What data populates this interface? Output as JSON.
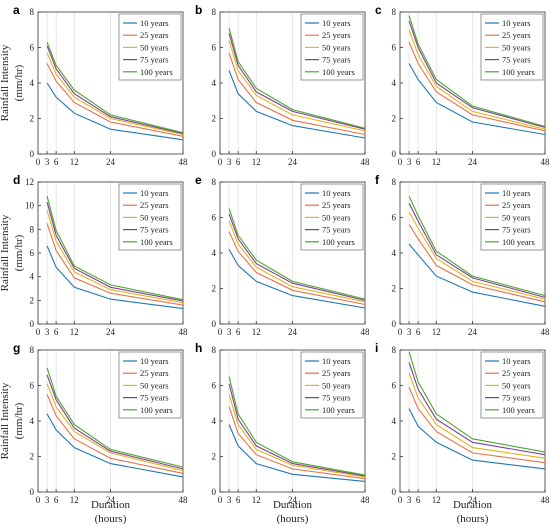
{
  "figure": {
    "ylabel_line1": "Rainfall Intensity",
    "ylabel_line2": "(mm/hr)",
    "xlabel_line1": "Duration",
    "xlabel_line2": "(hours)"
  },
  "legend_labels": [
    "10 years",
    "25 years",
    "50 years",
    "75 years",
    "100 years"
  ],
  "series_colors": [
    "#1f77b4",
    "#e8734a",
    "#e5b41b",
    "#7e3f98",
    "#4ca62d"
  ],
  "chart_data": [
    {
      "type": "line",
      "panel": "a",
      "x": [
        3,
        6,
        12,
        24,
        48
      ],
      "xticks": [
        0,
        3,
        6,
        12,
        24,
        48
      ],
      "xlim": [
        0,
        48
      ],
      "ylim": [
        0,
        8
      ],
      "yticks": [
        0,
        2,
        4,
        6,
        8
      ],
      "grid": "vertical",
      "legend": "top-right",
      "series": [
        {
          "name": "10 years",
          "values": [
            4.0,
            3.2,
            2.3,
            1.4,
            0.8
          ]
        },
        {
          "name": "25 years",
          "values": [
            5.1,
            4.1,
            2.9,
            1.8,
            1.0
          ]
        },
        {
          "name": "50 years",
          "values": [
            5.7,
            4.5,
            3.2,
            2.0,
            1.1
          ]
        },
        {
          "name": "75 years",
          "values": [
            6.1,
            4.8,
            3.4,
            2.1,
            1.15
          ]
        },
        {
          "name": "100 years",
          "values": [
            6.3,
            5.0,
            3.6,
            2.2,
            1.2
          ]
        }
      ]
    },
    {
      "type": "line",
      "panel": "b",
      "x": [
        3,
        6,
        12,
        24,
        48
      ],
      "xticks": [
        0,
        3,
        6,
        12,
        24,
        48
      ],
      "xlim": [
        0,
        48
      ],
      "ylim": [
        0,
        8
      ],
      "yticks": [
        0,
        2,
        4,
        6,
        8
      ],
      "grid": "vertical",
      "legend": "top-right",
      "series": [
        {
          "name": "10 years",
          "values": [
            4.7,
            3.4,
            2.4,
            1.6,
            0.9
          ]
        },
        {
          "name": "25 years",
          "values": [
            5.7,
            4.2,
            2.9,
            1.9,
            1.1
          ]
        },
        {
          "name": "50 years",
          "values": [
            6.4,
            4.7,
            3.3,
            2.2,
            1.3
          ]
        },
        {
          "name": "75 years",
          "values": [
            6.8,
            5.0,
            3.5,
            2.4,
            1.4
          ]
        },
        {
          "name": "100 years",
          "values": [
            7.1,
            5.2,
            3.7,
            2.5,
            1.45
          ]
        }
      ]
    },
    {
      "type": "line",
      "panel": "c",
      "x": [
        3,
        6,
        12,
        24,
        48
      ],
      "xticks": [
        0,
        3,
        6,
        12,
        24,
        48
      ],
      "xlim": [
        0,
        48
      ],
      "ylim": [
        0,
        8
      ],
      "yticks": [
        0,
        2,
        4,
        6,
        8
      ],
      "grid": "vertical",
      "legend": "top-right",
      "series": [
        {
          "name": "10 years",
          "values": [
            5.1,
            4.2,
            2.9,
            1.8,
            1.1
          ]
        },
        {
          "name": "25 years",
          "values": [
            6.3,
            5.1,
            3.5,
            2.2,
            1.3
          ]
        },
        {
          "name": "50 years",
          "values": [
            7.0,
            5.6,
            3.8,
            2.4,
            1.4
          ]
        },
        {
          "name": "75 years",
          "values": [
            7.5,
            6.0,
            4.0,
            2.6,
            1.5
          ]
        },
        {
          "name": "100 years",
          "values": [
            7.8,
            6.2,
            4.2,
            2.7,
            1.55
          ]
        }
      ]
    },
    {
      "type": "line",
      "panel": "d",
      "x": [
        3,
        6,
        12,
        24,
        48
      ],
      "xticks": [
        0,
        3,
        6,
        12,
        24,
        48
      ],
      "xlim": [
        0,
        48
      ],
      "ylim": [
        0,
        12
      ],
      "yticks": [
        0,
        2,
        4,
        6,
        8,
        10,
        12
      ],
      "grid": "vertical",
      "legend": "top-right",
      "series": [
        {
          "name": "10 years",
          "values": [
            6.6,
            4.8,
            3.1,
            2.1,
            1.3
          ]
        },
        {
          "name": "25 years",
          "values": [
            8.5,
            6.2,
            3.9,
            2.6,
            1.6
          ]
        },
        {
          "name": "50 years",
          "values": [
            9.6,
            7.0,
            4.4,
            2.9,
            1.8
          ]
        },
        {
          "name": "75 years",
          "values": [
            10.3,
            7.5,
            4.7,
            3.1,
            1.95
          ]
        },
        {
          "name": "100 years",
          "values": [
            10.8,
            7.9,
            4.9,
            3.3,
            2.05
          ]
        }
      ]
    },
    {
      "type": "line",
      "panel": "e",
      "x": [
        3,
        6,
        12,
        24,
        48
      ],
      "xticks": [
        0,
        3,
        6,
        12,
        24,
        48
      ],
      "xlim": [
        0,
        48
      ],
      "ylim": [
        0,
        8
      ],
      "yticks": [
        0,
        2,
        4,
        6,
        8
      ],
      "grid": "vertical",
      "legend": "top-right",
      "series": [
        {
          "name": "10 years",
          "values": [
            4.2,
            3.3,
            2.4,
            1.6,
            0.9
          ]
        },
        {
          "name": "25 years",
          "values": [
            5.2,
            4.1,
            2.9,
            1.9,
            1.1
          ]
        },
        {
          "name": "50 years",
          "values": [
            5.8,
            4.5,
            3.2,
            2.1,
            1.25
          ]
        },
        {
          "name": "75 years",
          "values": [
            6.2,
            4.8,
            3.4,
            2.3,
            1.33
          ]
        },
        {
          "name": "100 years",
          "values": [
            6.5,
            5.0,
            3.6,
            2.4,
            1.4
          ]
        }
      ]
    },
    {
      "type": "line",
      "panel": "f",
      "x": [
        3,
        6,
        12,
        24,
        48
      ],
      "xticks": [
        0,
        3,
        6,
        12,
        24,
        48
      ],
      "xlim": [
        0,
        48
      ],
      "ylim": [
        0,
        8
      ],
      "yticks": [
        0,
        2,
        4,
        6,
        8
      ],
      "grid": "vertical",
      "legend": "top-right",
      "series": [
        {
          "name": "10 years",
          "values": [
            4.5,
            3.9,
            2.7,
            1.8,
            1.0
          ]
        },
        {
          "name": "25 years",
          "values": [
            5.6,
            4.8,
            3.3,
            2.2,
            1.25
          ]
        },
        {
          "name": "50 years",
          "values": [
            6.3,
            5.4,
            3.7,
            2.4,
            1.4
          ]
        },
        {
          "name": "75 years",
          "values": [
            6.8,
            5.8,
            3.9,
            2.6,
            1.5
          ]
        },
        {
          "name": "100 years",
          "values": [
            7.2,
            6.1,
            4.1,
            2.7,
            1.6
          ]
        }
      ]
    },
    {
      "type": "line",
      "panel": "g",
      "x": [
        3,
        6,
        12,
        24,
        48
      ],
      "xticks": [
        0,
        3,
        6,
        12,
        24,
        48
      ],
      "xlim": [
        0,
        48
      ],
      "ylim": [
        0,
        8
      ],
      "yticks": [
        0,
        2,
        4,
        6,
        8
      ],
      "grid": "vertical",
      "legend": "top-right",
      "series": [
        {
          "name": "10 years",
          "values": [
            4.4,
            3.5,
            2.5,
            1.6,
            0.85
          ]
        },
        {
          "name": "25 years",
          "values": [
            5.5,
            4.3,
            3.0,
            1.9,
            1.05
          ]
        },
        {
          "name": "50 years",
          "values": [
            6.1,
            4.8,
            3.4,
            2.2,
            1.2
          ]
        },
        {
          "name": "75 years",
          "values": [
            6.6,
            5.2,
            3.6,
            2.3,
            1.3
          ]
        },
        {
          "name": "100 years",
          "values": [
            7.0,
            5.4,
            3.8,
            2.4,
            1.4
          ]
        }
      ]
    },
    {
      "type": "line",
      "panel": "h",
      "x": [
        3,
        6,
        12,
        24,
        48
      ],
      "xticks": [
        0,
        3,
        6,
        12,
        24,
        48
      ],
      "xlim": [
        0,
        48
      ],
      "ylim": [
        0,
        8
      ],
      "yticks": [
        0,
        2,
        4,
        6,
        8
      ],
      "grid": "vertical",
      "legend": "top-right",
      "series": [
        {
          "name": "10 years",
          "values": [
            3.8,
            2.6,
            1.6,
            1.0,
            0.6
          ]
        },
        {
          "name": "25 years",
          "values": [
            4.8,
            3.3,
            2.1,
            1.3,
            0.75
          ]
        },
        {
          "name": "50 years",
          "values": [
            5.5,
            3.8,
            2.4,
            1.5,
            0.85
          ]
        },
        {
          "name": "75 years",
          "values": [
            6.1,
            4.1,
            2.6,
            1.6,
            0.9
          ]
        },
        {
          "name": "100 years",
          "values": [
            6.5,
            4.4,
            2.8,
            1.7,
            0.95
          ]
        }
      ]
    },
    {
      "type": "line",
      "panel": "i",
      "x": [
        3,
        6,
        12,
        24,
        48
      ],
      "xticks": [
        0,
        3,
        6,
        12,
        24,
        48
      ],
      "xlim": [
        0,
        48
      ],
      "ylim": [
        0,
        8
      ],
      "yticks": [
        0,
        2,
        4,
        6,
        8
      ],
      "grid": "vertical",
      "legend": "top-right",
      "series": [
        {
          "name": "10 years",
          "values": [
            4.7,
            3.7,
            2.8,
            1.8,
            1.3
          ]
        },
        {
          "name": "25 years",
          "values": [
            5.9,
            4.7,
            3.4,
            2.2,
            1.65
          ]
        },
        {
          "name": "50 years",
          "values": [
            6.7,
            5.3,
            3.8,
            2.5,
            1.9
          ]
        },
        {
          "name": "75 years",
          "values": [
            7.3,
            5.8,
            4.1,
            2.8,
            2.1
          ]
        },
        {
          "name": "100 years",
          "values": [
            7.9,
            6.2,
            4.4,
            3.0,
            2.25
          ]
        }
      ]
    }
  ]
}
